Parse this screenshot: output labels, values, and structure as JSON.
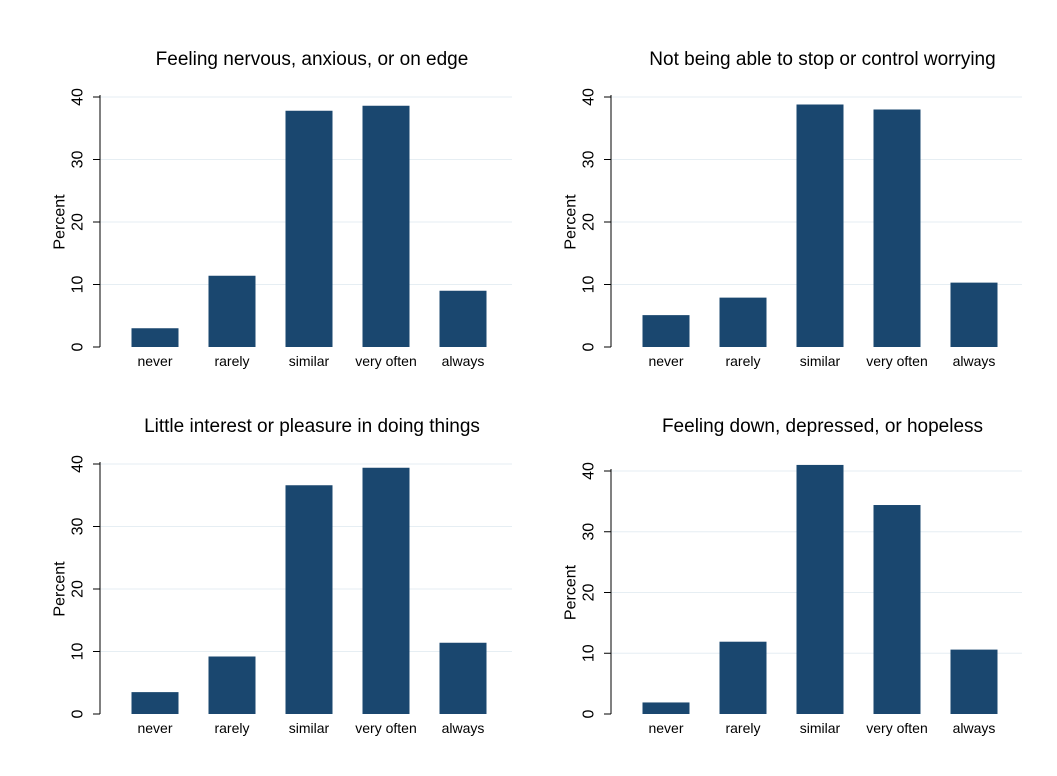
{
  "chart_data": [
    {
      "type": "bar",
      "title": "Feeling nervous, anxious, or on edge",
      "ylabel": "Percent",
      "categories": [
        "never",
        "rarely",
        "similar",
        "very often",
        "always"
      ],
      "values": [
        3.0,
        11.4,
        37.8,
        38.6,
        9.0
      ],
      "ylim": [
        0,
        40
      ],
      "yticks": [
        0,
        10,
        20,
        30,
        40
      ],
      "grid": true,
      "bar_color": "#1a476f"
    },
    {
      "type": "bar",
      "title": "Not being able to stop or control worrying",
      "ylabel": "Percent",
      "categories": [
        "never",
        "rarely",
        "similar",
        "very often",
        "always"
      ],
      "values": [
        5.1,
        7.9,
        38.8,
        38.0,
        10.3
      ],
      "ylim": [
        0,
        40
      ],
      "yticks": [
        0,
        10,
        20,
        30,
        40
      ],
      "grid": true,
      "bar_color": "#1a476f"
    },
    {
      "type": "bar",
      "title": "Little interest or pleasure in doing things",
      "ylabel": "Percent",
      "categories": [
        "never",
        "rarely",
        "similar",
        "very often",
        "always"
      ],
      "values": [
        3.5,
        9.2,
        36.6,
        39.4,
        11.4
      ],
      "ylim": [
        0,
        40
      ],
      "yticks": [
        0,
        10,
        20,
        30,
        40
      ],
      "grid": true,
      "bar_color": "#1a476f"
    },
    {
      "type": "bar",
      "title": "Feeling down, depressed, or hopeless",
      "ylabel": "Percent",
      "categories": [
        "never",
        "rarely",
        "similar",
        "very often",
        "always"
      ],
      "values": [
        1.9,
        11.9,
        41.0,
        34.4,
        10.6
      ],
      "ylim": [
        0,
        40
      ],
      "yticks": [
        0,
        10,
        20,
        30,
        40
      ],
      "grid": true,
      "bar_color": "#1a476f"
    }
  ]
}
